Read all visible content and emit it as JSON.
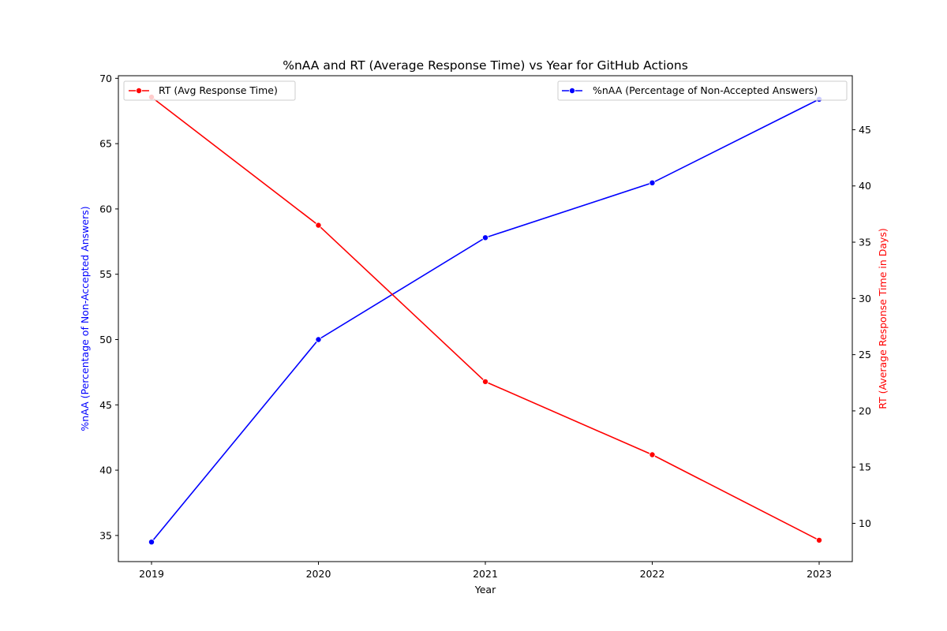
{
  "chart_data": {
    "type": "line",
    "title": "%nAA and RT (Average Response Time) vs Year for GitHub Actions",
    "xlabel": "Year",
    "ylabel_left": "%nAA (Percentage of Non-Accepted Answers)",
    "ylabel_right": "RT (Average Response Time in Days)",
    "categories": [
      "2019",
      "2020",
      "2021",
      "2022",
      "2023"
    ],
    "x": [
      2019,
      2020,
      2021,
      2022,
      2023
    ],
    "ylim_left": [
      33,
      70.2
    ],
    "ylim_right": [
      6.6,
      49.8
    ],
    "yticks_left": [
      35,
      40,
      45,
      50,
      55,
      60,
      65,
      70
    ],
    "yticks_right": [
      10,
      15,
      20,
      25,
      30,
      35,
      40,
      45
    ],
    "grid": false,
    "series": [
      {
        "name": "%nAA (Percentage of Non-Accepted Answers)",
        "axis": "left",
        "color": "#0000ff",
        "values": [
          34.5,
          50.0,
          57.8,
          62.0,
          68.4
        ],
        "legend_position": "upper right"
      },
      {
        "name": "RT (Avg Response Time)",
        "axis": "right",
        "color": "#ff0000",
        "values": [
          47.9,
          36.5,
          22.6,
          16.1,
          8.5
        ],
        "legend_position": "upper left"
      }
    ]
  }
}
